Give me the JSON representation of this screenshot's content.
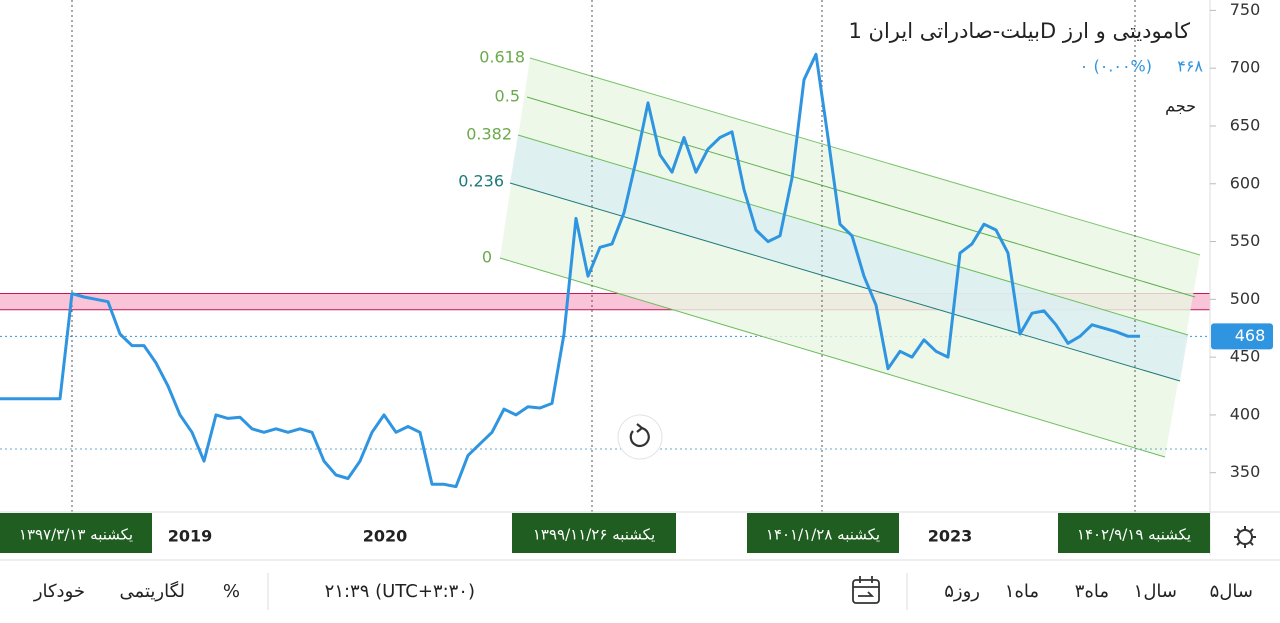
{
  "chart_data": {
    "type": "line",
    "title": "بیلت-صادراتی ایران 1D کامودیتی و ارز",
    "header_price": "۴۶۸",
    "header_change": "۰ (۰.۰۰%)",
    "volume_label": "حجم",
    "series": [
      {
        "name": "بیلت-صادراتی ایران",
        "color": "#2f95e0",
        "values": [
          414,
          414,
          414,
          414,
          414,
          414,
          505,
          502,
          500,
          498,
          470,
          460,
          460,
          445,
          425,
          400,
          385,
          360,
          400,
          397,
          398,
          388,
          385,
          388,
          385,
          388,
          385,
          360,
          348,
          345,
          360,
          385,
          400,
          385,
          390,
          385,
          340,
          340,
          338,
          365,
          375,
          385,
          405,
          400,
          407,
          406,
          410,
          470,
          570,
          520,
          545,
          548,
          575,
          620,
          670,
          625,
          610,
          640,
          610,
          630,
          640,
          645,
          595,
          560,
          550,
          555,
          605,
          690,
          712,
          640,
          565,
          555,
          520,
          495,
          440,
          455,
          450,
          465,
          455,
          450,
          540,
          548,
          565,
          560,
          540,
          470,
          488,
          490,
          478,
          462,
          468,
          478,
          475,
          472,
          468,
          468
        ]
      }
    ],
    "last_value": 468,
    "highlight_band": [
      491,
      505
    ],
    "ylim": [
      316,
      759
    ],
    "yticks": [
      350,
      400,
      450,
      500,
      550,
      600,
      650,
      700,
      750
    ],
    "fib_levels": [
      "0.618",
      "0.5",
      "0.382",
      "0.236",
      "0"
    ],
    "x_labels": [
      "2019",
      "2020",
      "2023"
    ],
    "date_badges": [
      "یکشنبه ۱۳۹۷/۳/۱۳",
      "یکشنبه ۱۳۹۹/۱۱/۲۶",
      "یکشنبه ۱۴۰۱/۱/۲۸",
      "یکشنبه ۱۴۰۲/۹/۱۹"
    ]
  },
  "toolbar": {
    "ranges": [
      "۵سال",
      "۱سال",
      "۳ماه",
      "۱ماه",
      "۵روز"
    ],
    "time": "۲۱:۳۹ (UTC+۳:۳۰)",
    "percent": "%",
    "log": "لگاریتمی",
    "auto": "خودکار"
  }
}
